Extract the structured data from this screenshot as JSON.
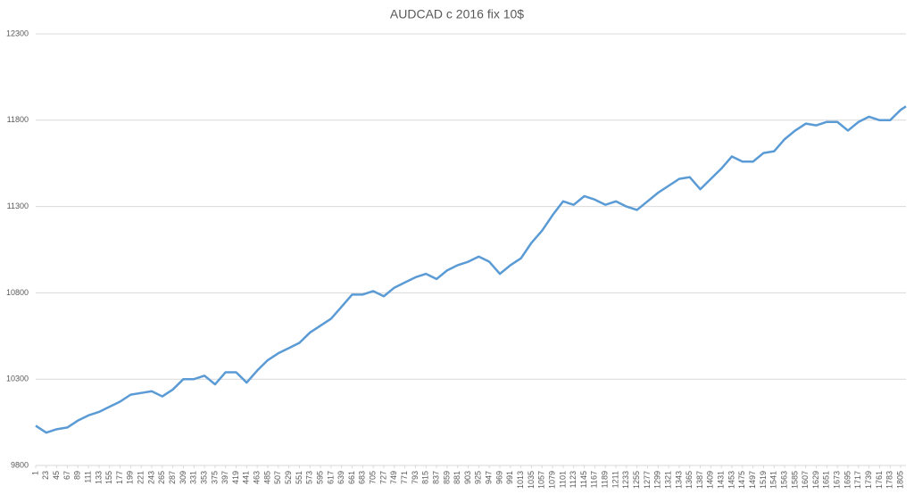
{
  "chart_data": {
    "type": "line",
    "title": "AUDCAD c 2016 fix 10$",
    "x": [
      1,
      23,
      45,
      67,
      89,
      111,
      133,
      155,
      177,
      199,
      221,
      243,
      265,
      287,
      309,
      331,
      353,
      375,
      397,
      419,
      441,
      463,
      485,
      507,
      529,
      551,
      573,
      595,
      617,
      639,
      661,
      683,
      705,
      727,
      749,
      771,
      793,
      815,
      837,
      859,
      881,
      903,
      925,
      947,
      969,
      991,
      1013,
      1035,
      1057,
      1079,
      1101,
      1123,
      1145,
      1167,
      1189,
      1211,
      1233,
      1255,
      1277,
      1299,
      1321,
      1343,
      1365,
      1387,
      1409,
      1431,
      1453,
      1475,
      1497,
      1519,
      1541,
      1563,
      1585,
      1607,
      1629,
      1651,
      1673,
      1695,
      1717,
      1739,
      1761,
      1783,
      1805,
      1816
    ],
    "values": [
      10030,
      9990,
      10010,
      10020,
      10060,
      10090,
      10110,
      10140,
      10170,
      10210,
      10220,
      10230,
      10200,
      10240,
      10300,
      10300,
      10320,
      10270,
      10340,
      10340,
      10280,
      10350,
      10410,
      10450,
      10480,
      10510,
      10570,
      10610,
      10650,
      10720,
      10790,
      10790,
      10810,
      10780,
      10830,
      10860,
      10890,
      10910,
      10880,
      10930,
      10960,
      10980,
      11010,
      10980,
      10910,
      10960,
      11000,
      11090,
      11160,
      11250,
      11330,
      11310,
      11360,
      11340,
      11310,
      11330,
      11300,
      11280,
      11330,
      11380,
      11420,
      11460,
      11470,
      11400,
      11460,
      11520,
      11590,
      11560,
      11560,
      11610,
      11620,
      11690,
      11740,
      11780,
      11770,
      11790,
      11790,
      11740,
      11790,
      11820,
      11800,
      11800,
      11860,
      11880
    ],
    "color": "#5b9bd5",
    "xlim": [
      1,
      1816
    ],
    "xticks": [
      1,
      23,
      45,
      67,
      89,
      111,
      133,
      155,
      177,
      199,
      221,
      243,
      265,
      287,
      309,
      331,
      353,
      375,
      397,
      419,
      441,
      463,
      485,
      507,
      529,
      551,
      573,
      595,
      617,
      639,
      661,
      683,
      705,
      727,
      749,
      771,
      793,
      815,
      837,
      859,
      881,
      903,
      925,
      947,
      969,
      991,
      1013,
      1035,
      1057,
      1079,
      1101,
      1123,
      1145,
      1167,
      1189,
      1211,
      1233,
      1255,
      1277,
      1299,
      1321,
      1343,
      1365,
      1387,
      1409,
      1431,
      1453,
      1475,
      1497,
      1519,
      1541,
      1563,
      1585,
      1607,
      1629,
      1651,
      1673,
      1695,
      1717,
      1739,
      1761,
      1783,
      1805
    ],
    "ylim": [
      9800,
      12300
    ],
    "yticks": [
      9800,
      10300,
      10800,
      11300,
      11800,
      12300
    ],
    "grid": true
  }
}
